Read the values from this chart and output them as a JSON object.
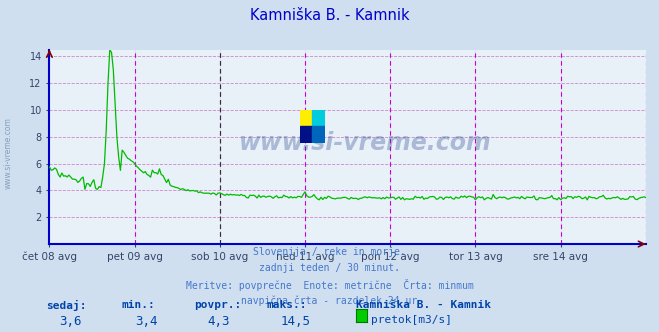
{
  "title": "Kamniška B. - Kamnik",
  "title_color": "#0000cc",
  "bg_color": "#d0dff0",
  "plot_bg_color": "#e8f0f8",
  "grid_color_h": "#cc99cc",
  "grid_color_v": "#aabbcc",
  "line_color": "#00bb00",
  "border_color": "#0000ff",
  "x_tick_labels": [
    "čet 08 avg",
    "pet 09 avg",
    "sob 10 avg",
    "ned 11 avg",
    "pon 12 avg",
    "tor 13 avg",
    "sre 14 avg"
  ],
  "x_tick_positions": [
    0,
    48,
    96,
    144,
    192,
    240,
    288
  ],
  "total_points": 337,
  "y_min": 0,
  "y_max": 14.5,
  "y_ticks": [
    2,
    4,
    6,
    8,
    10,
    12,
    14
  ],
  "magenta_lines_x": [
    48,
    96,
    144,
    192,
    240,
    288,
    336
  ],
  "black_dashed_x": 96,
  "arrow_color": "#880000",
  "watermark_text": "www.si-vreme.com",
  "watermark_color": "#1a3a8a",
  "footer_line1": "Slovenija / reke in morje.",
  "footer_line2": "zadnji teden / 30 minut.",
  "footer_line3": "Meritve: povprečne  Enote: metrične  Črta: minmum",
  "footer_line4": "navpična črta - razdelek 24 ur",
  "footer_color": "#4477cc",
  "stats_labels": [
    "sedaj:",
    "min.:",
    "povpr.:",
    "maks.:"
  ],
  "stats_values": [
    "3,6",
    "3,4",
    "4,3",
    "14,5"
  ],
  "stats_color": "#0044aa",
  "legend_label": "pretok[m3/s]",
  "legend_station": "Kamniška B. - Kamnik",
  "legend_color": "#00cc00",
  "sidebar_text": "www.si-vreme.com",
  "sidebar_color": "#7090b0",
  "logo_colors": [
    "#ffdd00",
    "#00bbcc",
    "#0033aa",
    "#0077cc"
  ]
}
